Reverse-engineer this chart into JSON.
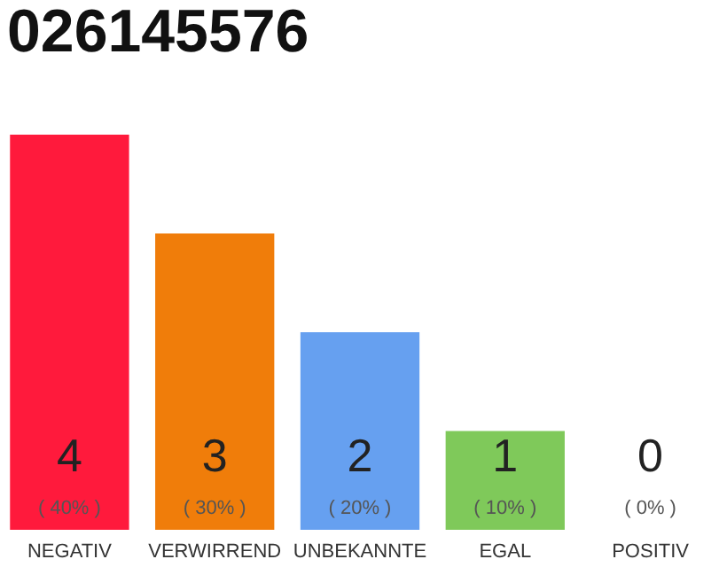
{
  "chart_data": {
    "type": "bar",
    "title": "026145576",
    "categories": [
      "NEGATIV",
      "VERWIRREND",
      "UNBEKANNTE",
      "EGAL",
      "POSITIV"
    ],
    "values": [
      4,
      3,
      2,
      1,
      0
    ],
    "colors": [
      "#ff1a3c",
      "#f07d0a",
      "#66a0f0",
      "#7fc95a",
      "#eeeeee"
    ],
    "ylim": [
      0,
      4
    ],
    "tick_labels": "x",
    "grid": false,
    "data_labels": true,
    "annotations": [
      {
        "text": "( 40% )",
        "x": "NEGATIV",
        "y": 0
      },
      {
        "text": "( 30% )",
        "x": "VERWIRREND",
        "y": 0
      },
      {
        "text": "( 20% )",
        "x": "UNBEKANNTE",
        "y": 0
      },
      {
        "text": "( 10% )",
        "x": "EGAL",
        "y": 0
      },
      {
        "text": "( 0% )",
        "x": "POSITIV",
        "y": 0
      }
    ]
  }
}
